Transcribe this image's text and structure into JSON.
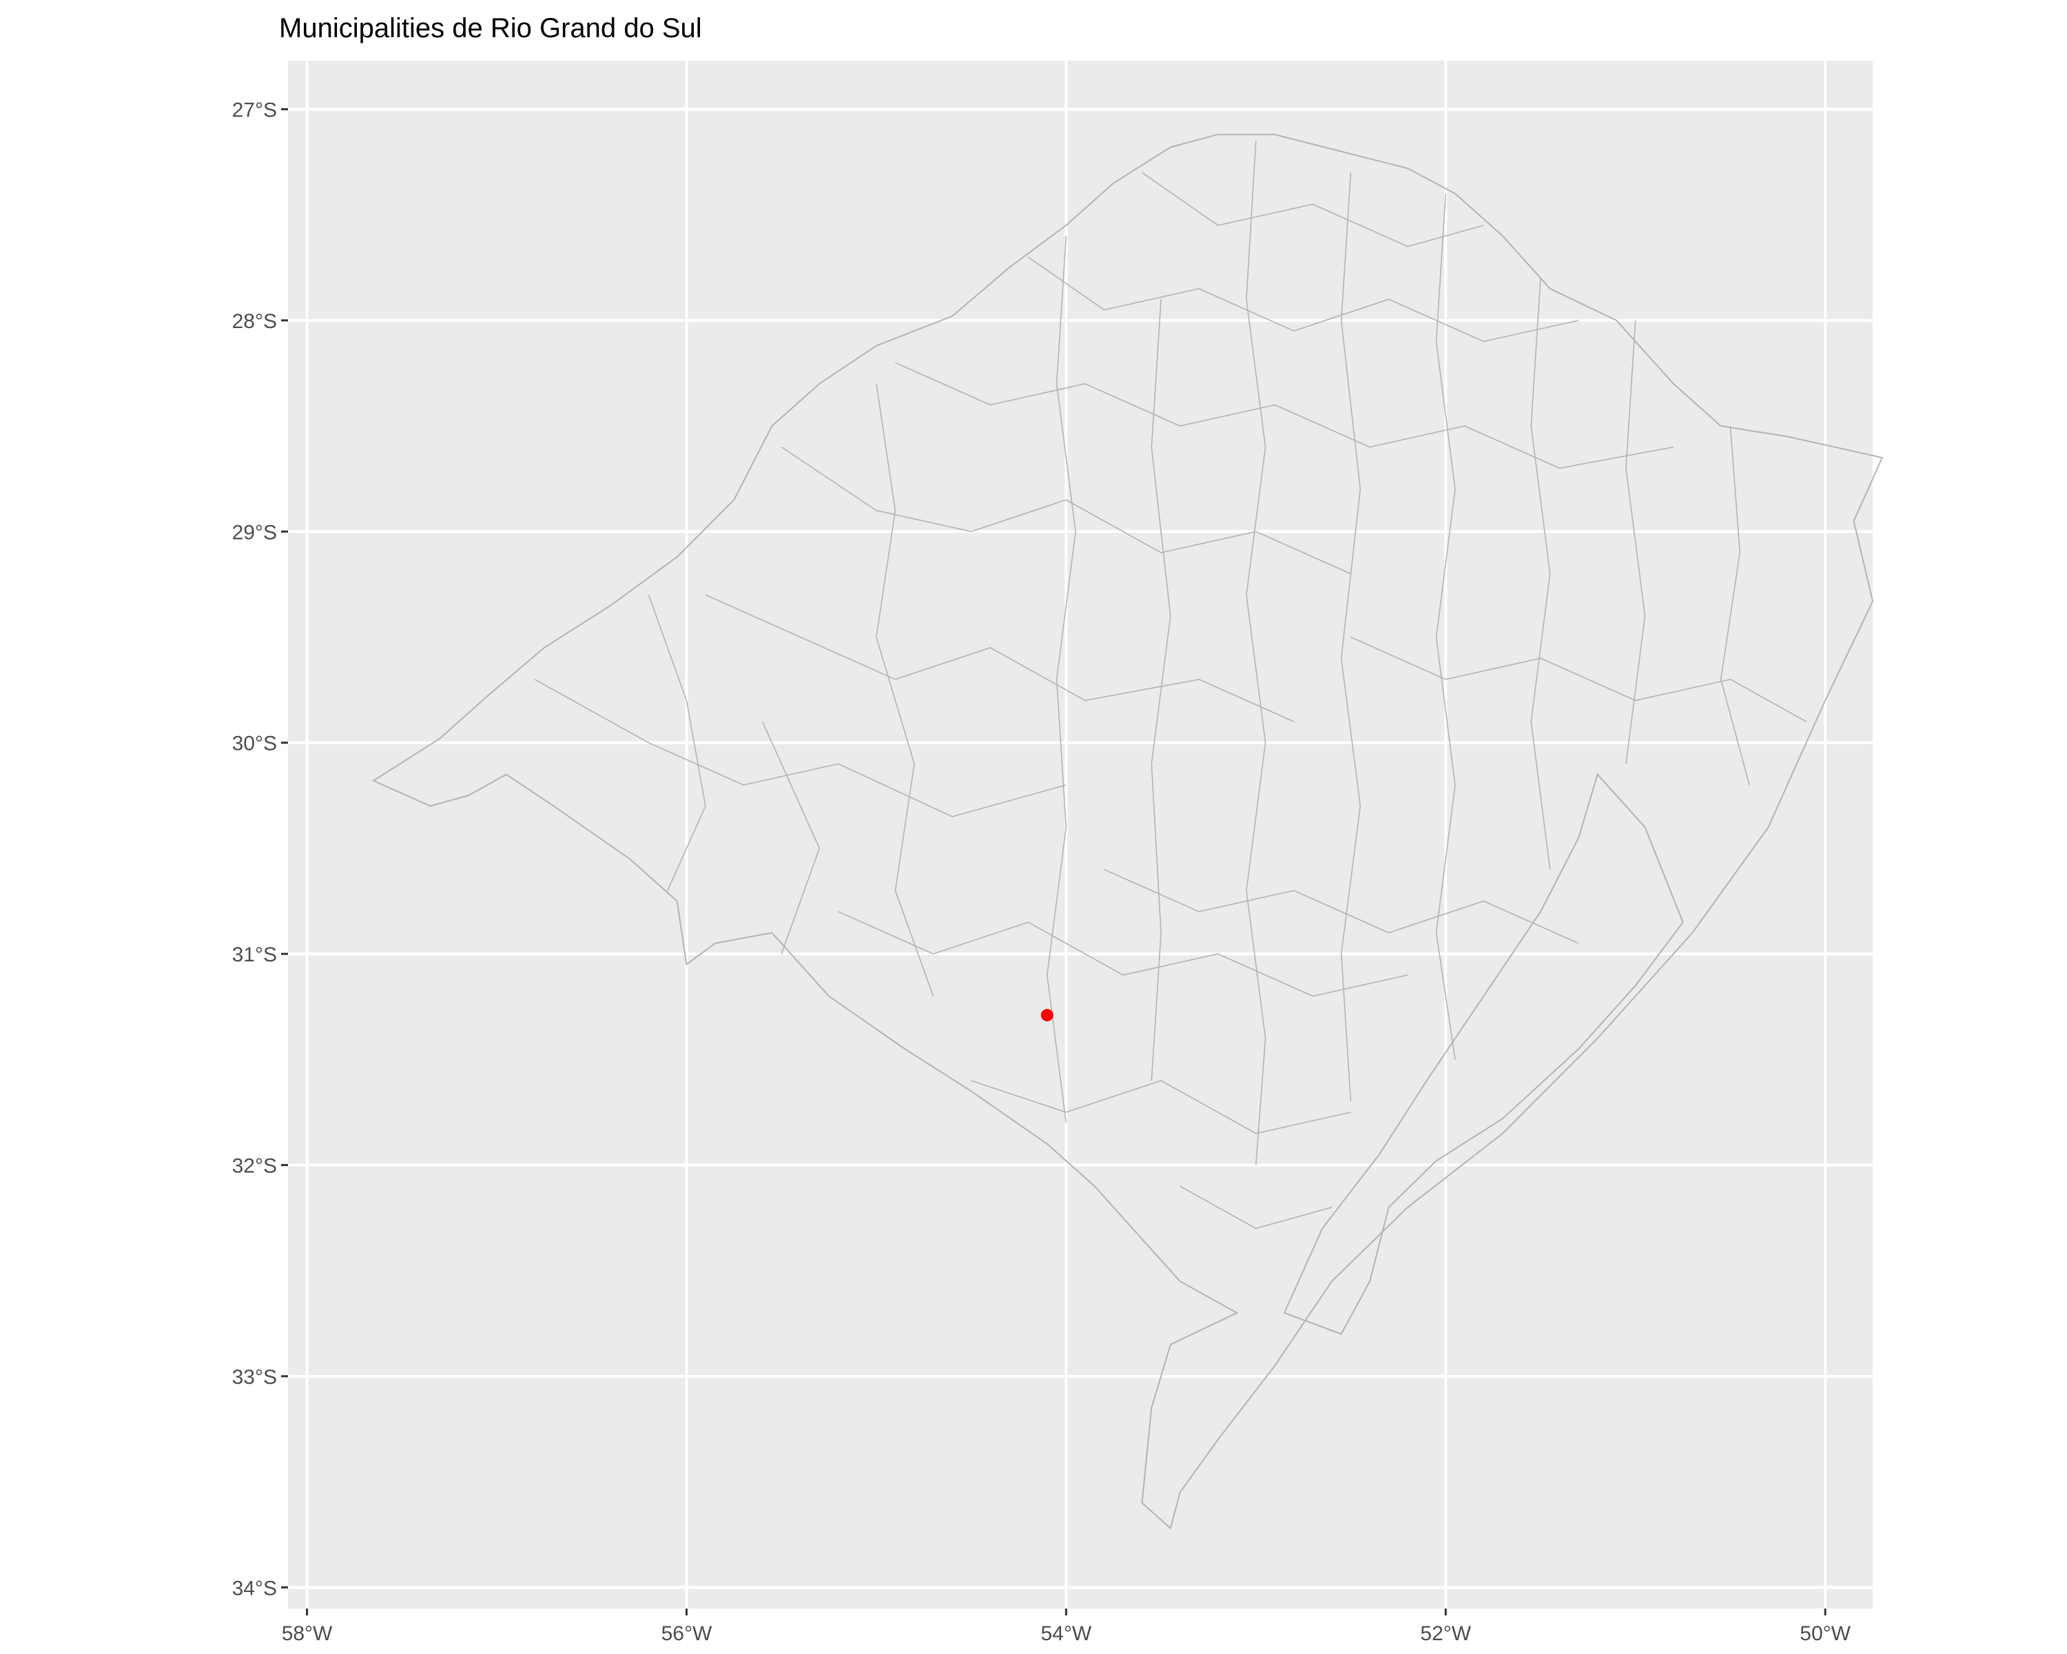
{
  "title": "Municipalities de Rio Grand do Sul",
  "colors": {
    "panel_background": "#ebebeb",
    "grid": "#ffffff",
    "boundary": "#b3b3b3",
    "point": "#ff0000",
    "axis_text": "#4d4d4d"
  },
  "chart_data": {
    "type": "map",
    "title": "Municipalities de Rio Grand do Sul",
    "grid": true,
    "xlim": [
      -58.1,
      -49.75
    ],
    "ylim": [
      -34.1,
      -26.77
    ],
    "x_ticks": [
      {
        "value": -58,
        "label": "58°W"
      },
      {
        "value": -56,
        "label": "56°W"
      },
      {
        "value": -54,
        "label": "54°W"
      },
      {
        "value": -52,
        "label": "52°W"
      },
      {
        "value": -50,
        "label": "50°W"
      }
    ],
    "y_ticks": [
      {
        "value": -27,
        "label": "27°S"
      },
      {
        "value": -28,
        "label": "28°S"
      },
      {
        "value": -29,
        "label": "29°S"
      },
      {
        "value": -30,
        "label": "30°S"
      },
      {
        "value": -31,
        "label": "31°S"
      },
      {
        "value": -32,
        "label": "32°S"
      },
      {
        "value": -33,
        "label": "33°S"
      },
      {
        "value": -34,
        "label": "34°S"
      }
    ],
    "highlight_point": {
      "lon": -54.1,
      "lat": -31.29
    },
    "state_outline": [
      [
        -57.65,
        -30.18
      ],
      [
        -57.3,
        -29.98
      ],
      [
        -57.05,
        -29.78
      ],
      [
        -56.75,
        -29.55
      ],
      [
        -56.4,
        -29.35
      ],
      [
        -56.05,
        -29.12
      ],
      [
        -55.75,
        -28.85
      ],
      [
        -55.55,
        -28.5
      ],
      [
        -55.3,
        -28.3
      ],
      [
        -55.0,
        -28.12
      ],
      [
        -54.6,
        -27.98
      ],
      [
        -54.3,
        -27.75
      ],
      [
        -54.0,
        -27.55
      ],
      [
        -53.75,
        -27.35
      ],
      [
        -53.45,
        -27.18
      ],
      [
        -53.2,
        -27.12
      ],
      [
        -52.9,
        -27.12
      ],
      [
        -52.55,
        -27.2
      ],
      [
        -52.2,
        -27.28
      ],
      [
        -51.95,
        -27.4
      ],
      [
        -51.7,
        -27.6
      ],
      [
        -51.45,
        -27.85
      ],
      [
        -51.1,
        -28.0
      ],
      [
        -50.8,
        -28.3
      ],
      [
        -50.55,
        -28.5
      ],
      [
        -50.2,
        -28.55
      ],
      [
        -49.95,
        -28.6
      ],
      [
        -49.7,
        -28.65
      ],
      [
        -49.85,
        -28.95
      ],
      [
        -49.75,
        -29.33
      ],
      [
        -50.0,
        -29.8
      ],
      [
        -50.3,
        -30.4
      ],
      [
        -50.7,
        -30.9
      ],
      [
        -51.2,
        -31.4
      ],
      [
        -51.7,
        -31.85
      ],
      [
        -52.2,
        -32.2
      ],
      [
        -52.6,
        -32.55
      ],
      [
        -52.9,
        -32.95
      ],
      [
        -53.2,
        -33.3
      ],
      [
        -53.4,
        -33.55
      ],
      [
        -53.45,
        -33.72
      ],
      [
        -53.6,
        -33.6
      ],
      [
        -53.55,
        -33.15
      ],
      [
        -53.45,
        -32.85
      ],
      [
        -53.1,
        -32.7
      ],
      [
        -53.4,
        -32.55
      ],
      [
        -53.6,
        -32.35
      ],
      [
        -53.85,
        -32.1
      ],
      [
        -54.1,
        -31.9
      ],
      [
        -54.5,
        -31.65
      ],
      [
        -54.85,
        -31.45
      ],
      [
        -55.25,
        -31.2
      ],
      [
        -55.55,
        -30.9
      ],
      [
        -55.85,
        -30.95
      ],
      [
        -56.0,
        -31.05
      ],
      [
        -56.05,
        -30.75
      ],
      [
        -56.3,
        -30.55
      ],
      [
        -56.7,
        -30.3
      ],
      [
        -56.95,
        -30.15
      ],
      [
        -57.15,
        -30.25
      ],
      [
        -57.35,
        -30.3
      ],
      [
        -57.65,
        -30.18
      ]
    ],
    "lagoon_outline": [
      [
        -51.2,
        -30.15
      ],
      [
        -50.95,
        -30.4
      ],
      [
        -50.75,
        -30.85
      ],
      [
        -51.0,
        -31.15
      ],
      [
        -51.3,
        -31.45
      ],
      [
        -51.7,
        -31.78
      ],
      [
        -52.05,
        -31.98
      ],
      [
        -52.3,
        -32.2
      ],
      [
        -52.4,
        -32.55
      ],
      [
        -52.55,
        -32.8
      ],
      [
        -52.85,
        -32.7
      ],
      [
        -52.65,
        -32.3
      ],
      [
        -52.35,
        -31.95
      ],
      [
        -52.1,
        -31.6
      ],
      [
        -51.8,
        -31.2
      ],
      [
        -51.5,
        -30.8
      ],
      [
        -51.3,
        -30.45
      ],
      [
        -51.2,
        -30.15
      ]
    ],
    "municipal_borders": [
      [
        [
          -56.8,
          -29.7
        ],
        [
          -56.2,
          -30.0
        ],
        [
          -55.7,
          -30.2
        ],
        [
          -55.2,
          -30.1
        ],
        [
          -54.6,
          -30.35
        ],
        [
          -54.0,
          -30.2
        ]
      ],
      [
        [
          -55.9,
          -29.3
        ],
        [
          -55.4,
          -29.5
        ],
        [
          -54.9,
          -29.7
        ],
        [
          -54.4,
          -29.55
        ],
        [
          -53.9,
          -29.8
        ],
        [
          -53.3,
          -29.7
        ],
        [
          -52.8,
          -29.9
        ]
      ],
      [
        [
          -55.5,
          -28.6
        ],
        [
          -55.0,
          -28.9
        ],
        [
          -54.5,
          -29.0
        ],
        [
          -54.0,
          -28.85
        ],
        [
          -53.5,
          -29.1
        ],
        [
          -53.0,
          -29.0
        ],
        [
          -52.5,
          -29.2
        ]
      ],
      [
        [
          -54.9,
          -28.2
        ],
        [
          -54.4,
          -28.4
        ],
        [
          -53.9,
          -28.3
        ],
        [
          -53.4,
          -28.5
        ],
        [
          -52.9,
          -28.4
        ],
        [
          -52.4,
          -28.6
        ],
        [
          -51.9,
          -28.5
        ],
        [
          -51.4,
          -28.7
        ],
        [
          -50.8,
          -28.6
        ]
      ],
      [
        [
          -54.2,
          -27.7
        ],
        [
          -53.8,
          -27.95
        ],
        [
          -53.3,
          -27.85
        ],
        [
          -52.8,
          -28.05
        ],
        [
          -52.3,
          -27.9
        ],
        [
          -51.8,
          -28.1
        ],
        [
          -51.3,
          -28.0
        ]
      ],
      [
        [
          -53.6,
          -27.3
        ],
        [
          -53.2,
          -27.55
        ],
        [
          -52.7,
          -27.45
        ],
        [
          -52.2,
          -27.65
        ],
        [
          -51.8,
          -27.55
        ]
      ],
      [
        [
          -52.5,
          -29.5
        ],
        [
          -52.0,
          -29.7
        ],
        [
          -51.5,
          -29.6
        ],
        [
          -51.0,
          -29.8
        ],
        [
          -50.5,
          -29.7
        ],
        [
          -50.1,
          -29.9
        ]
      ],
      [
        [
          -53.8,
          -30.6
        ],
        [
          -53.3,
          -30.8
        ],
        [
          -52.8,
          -30.7
        ],
        [
          -52.3,
          -30.9
        ],
        [
          -51.8,
          -30.75
        ],
        [
          -51.3,
          -30.95
        ]
      ],
      [
        [
          -55.2,
          -30.8
        ],
        [
          -54.7,
          -31.0
        ],
        [
          -54.2,
          -30.85
        ],
        [
          -53.7,
          -31.1
        ],
        [
          -53.2,
          -31.0
        ],
        [
          -52.7,
          -31.2
        ],
        [
          -52.2,
          -31.1
        ]
      ],
      [
        [
          -54.5,
          -31.6
        ],
        [
          -54.0,
          -31.75
        ],
        [
          -53.5,
          -31.6
        ],
        [
          -53.0,
          -31.85
        ],
        [
          -52.5,
          -31.75
        ]
      ],
      [
        [
          -53.4,
          -32.1
        ],
        [
          -53.0,
          -32.3
        ],
        [
          -52.6,
          -32.2
        ]
      ],
      [
        [
          -56.2,
          -29.3
        ],
        [
          -56.0,
          -29.8
        ],
        [
          -55.9,
          -30.3
        ],
        [
          -56.1,
          -30.7
        ]
      ],
      [
        [
          -55.0,
          -28.3
        ],
        [
          -54.9,
          -28.9
        ],
        [
          -55.0,
          -29.5
        ],
        [
          -54.8,
          -30.1
        ],
        [
          -54.9,
          -30.7
        ],
        [
          -54.7,
          -31.2
        ]
      ],
      [
        [
          -54.0,
          -27.6
        ],
        [
          -54.05,
          -28.3
        ],
        [
          -53.95,
          -29.0
        ],
        [
          -54.05,
          -29.7
        ],
        [
          -54.0,
          -30.4
        ],
        [
          -54.1,
          -31.1
        ],
        [
          -54.0,
          -31.8
        ]
      ],
      [
        [
          -53.0,
          -27.15
        ],
        [
          -53.05,
          -27.9
        ],
        [
          -52.95,
          -28.6
        ],
        [
          -53.05,
          -29.3
        ],
        [
          -52.95,
          -30.0
        ],
        [
          -53.05,
          -30.7
        ],
        [
          -52.95,
          -31.4
        ],
        [
          -53.0,
          -32.0
        ]
      ],
      [
        [
          -52.0,
          -27.4
        ],
        [
          -52.05,
          -28.1
        ],
        [
          -51.95,
          -28.8
        ],
        [
          -52.05,
          -29.5
        ],
        [
          -51.95,
          -30.2
        ],
        [
          -52.05,
          -30.9
        ],
        [
          -51.95,
          -31.5
        ]
      ],
      [
        [
          -51.0,
          -28.0
        ],
        [
          -51.05,
          -28.7
        ],
        [
          -50.95,
          -29.4
        ],
        [
          -51.05,
          -30.1
        ]
      ],
      [
        [
          -50.5,
          -28.5
        ],
        [
          -50.45,
          -29.1
        ],
        [
          -50.55,
          -29.7
        ],
        [
          -50.4,
          -30.2
        ]
      ],
      [
        [
          -55.6,
          -29.9
        ],
        [
          -55.3,
          -30.5
        ],
        [
          -55.5,
          -31.0
        ]
      ],
      [
        [
          -53.5,
          -27.9
        ],
        [
          -53.55,
          -28.6
        ],
        [
          -53.45,
          -29.4
        ],
        [
          -53.55,
          -30.1
        ],
        [
          -53.5,
          -30.9
        ],
        [
          -53.55,
          -31.6
        ]
      ],
      [
        [
          -52.5,
          -27.3
        ],
        [
          -52.55,
          -28.0
        ],
        [
          -52.45,
          -28.8
        ],
        [
          -52.55,
          -29.6
        ],
        [
          -52.45,
          -30.3
        ],
        [
          -52.55,
          -31.0
        ],
        [
          -52.5,
          -31.7
        ]
      ],
      [
        [
          -51.5,
          -27.8
        ],
        [
          -51.55,
          -28.5
        ],
        [
          -51.45,
          -29.2
        ],
        [
          -51.55,
          -29.9
        ],
        [
          -51.45,
          -30.6
        ]
      ]
    ]
  }
}
